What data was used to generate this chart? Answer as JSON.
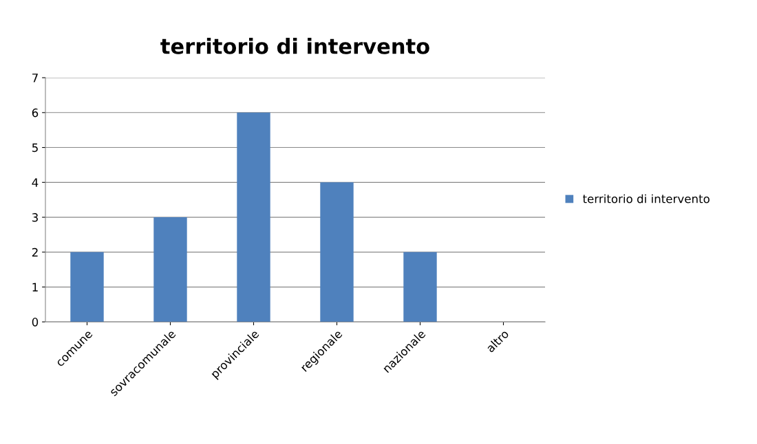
{
  "chart_data": {
    "type": "bar",
    "title": "territorio di intervento",
    "categories": [
      "comune",
      "sovracomunale",
      "provinciale",
      "regionale",
      "nazionale",
      "altro"
    ],
    "series": [
      {
        "name": "territorio di intervento",
        "color": "#4f81bd",
        "values": [
          2,
          3,
          6,
          4,
          2,
          0
        ]
      }
    ],
    "ylim": [
      0,
      7
    ],
    "yticks": [
      0,
      1,
      2,
      3,
      4,
      5,
      6,
      7
    ],
    "grid": "y",
    "legend": "right"
  }
}
